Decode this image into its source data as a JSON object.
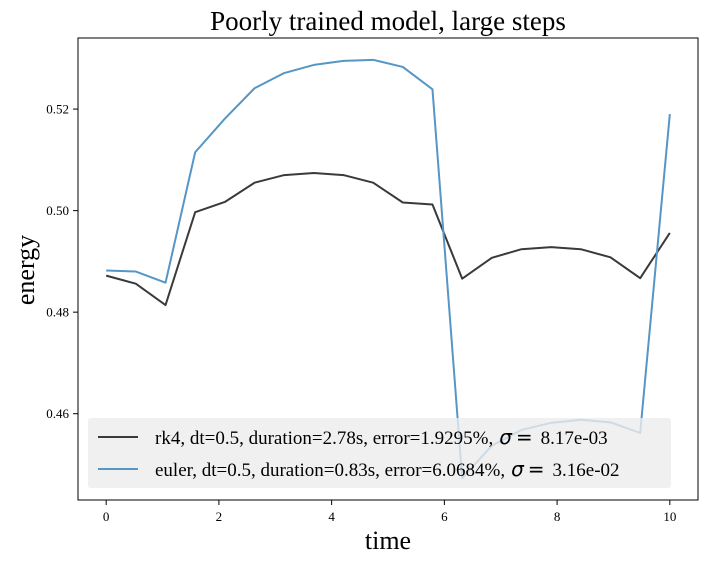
{
  "chart_data": {
    "type": "line",
    "title": "Poorly trained model, large steps",
    "xlabel": "time",
    "ylabel": "energy",
    "xlim": [
      -0.5,
      10.5
    ],
    "ylim": [
      0.443,
      0.534
    ],
    "xticks": [
      0,
      2,
      4,
      6,
      8,
      10
    ],
    "yticks": [
      0.46,
      0.48,
      0.5,
      0.52
    ],
    "ytick_labels": [
      "0.46",
      "0.48",
      "0.50",
      "0.52"
    ],
    "grid": false,
    "legend_position": "lower center",
    "series": [
      {
        "name": "rk4, dt=0.5, duration=2.78s, error=1.9295%,",
        "sigma_value": "8.17e-03",
        "color": "#3a3a3a",
        "x": [
          0,
          0.526,
          1.053,
          1.579,
          2.105,
          2.632,
          3.158,
          3.684,
          4.211,
          4.737,
          5.263,
          5.789,
          6.316,
          6.842,
          7.368,
          7.895,
          8.421,
          8.947,
          9.474,
          10.0
        ],
        "y": [
          0.4872,
          0.4856,
          0.4814,
          0.4997,
          0.5017,
          0.5055,
          0.507,
          0.5074,
          0.507,
          0.5055,
          0.5016,
          0.5012,
          0.4866,
          0.4907,
          0.4924,
          0.4928,
          0.4924,
          0.4908,
          0.4867,
          0.4956
        ]
      },
      {
        "name": "euler, dt=0.5, duration=0.83s, error=6.0684%,",
        "sigma_value": "3.16e-02",
        "color": "#5596c6",
        "x": [
          0,
          0.526,
          1.053,
          1.579,
          2.105,
          2.632,
          3.158,
          3.684,
          4.211,
          4.737,
          5.263,
          5.789,
          6.316,
          6.842,
          7.368,
          7.895,
          8.421,
          8.947,
          9.474,
          10.0
        ],
        "y": [
          0.4882,
          0.488,
          0.4858,
          0.5115,
          0.5181,
          0.5241,
          0.5271,
          0.5287,
          0.5295,
          0.5297,
          0.5283,
          0.5239,
          0.4473,
          0.4537,
          0.4568,
          0.4582,
          0.4588,
          0.4583,
          0.4562,
          0.519
        ]
      }
    ],
    "sigma_symbol": "σ",
    "sigma_eq": "="
  }
}
